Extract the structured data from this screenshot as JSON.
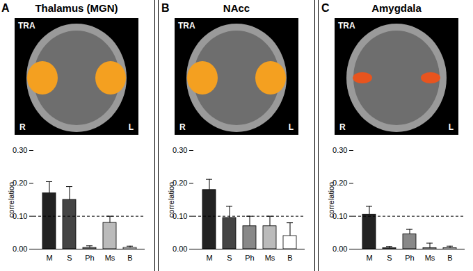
{
  "chart_data": [
    {
      "type": "bar",
      "panel": "A",
      "title": "Thalamus (MGN)",
      "image_labels": [
        "TRA",
        "R",
        "L"
      ],
      "categories": [
        "M",
        "S",
        "Ph",
        "Ms",
        "B"
      ],
      "values": [
        0.17,
        0.15,
        0.004,
        0.08,
        0.004
      ],
      "errors": [
        0.035,
        0.04,
        0.006,
        0.02,
        0.005
      ],
      "colors": [
        "#222222",
        "#444444",
        "#888888",
        "#bbbbbb",
        "#ffffff"
      ],
      "ylabel": "correlation",
      "ylim": [
        0,
        0.3
      ],
      "yticks": [
        0,
        0.1,
        0.2,
        0.3
      ],
      "threshold": 0.1
    },
    {
      "type": "bar",
      "panel": "B",
      "title": "NAcc",
      "image_labels": [
        "TRA",
        "R",
        "L"
      ],
      "categories": [
        "M",
        "S",
        "Ph",
        "Ms",
        "B"
      ],
      "values": [
        0.18,
        0.095,
        0.07,
        0.07,
        0.04
      ],
      "errors": [
        0.032,
        0.035,
        0.03,
        0.03,
        0.04
      ],
      "colors": [
        "#222222",
        "#444444",
        "#888888",
        "#bbbbbb",
        "#ffffff"
      ],
      "ylabel": "correlation",
      "ylim": [
        0,
        0.3
      ],
      "yticks": [
        0,
        0.1,
        0.2,
        0.3
      ],
      "threshold": 0.1
    },
    {
      "type": "bar",
      "panel": "C",
      "title": "Amygdala",
      "image_labels": [
        "TRA",
        "R",
        "L"
      ],
      "categories": [
        "M",
        "S",
        "Ph",
        "Ms",
        "B"
      ],
      "values": [
        0.105,
        0.003,
        0.045,
        0.003,
        0.003
      ],
      "errors": [
        0.025,
        0.005,
        0.015,
        0.015,
        0.006
      ],
      "colors": [
        "#222222",
        "#444444",
        "#888888",
        "#bbbbbb",
        "#ffffff"
      ],
      "ylabel": "correlation",
      "ylim": [
        0,
        0.3
      ],
      "yticks": [
        0,
        0.1,
        0.2,
        0.3
      ],
      "threshold": 0.1
    }
  ]
}
